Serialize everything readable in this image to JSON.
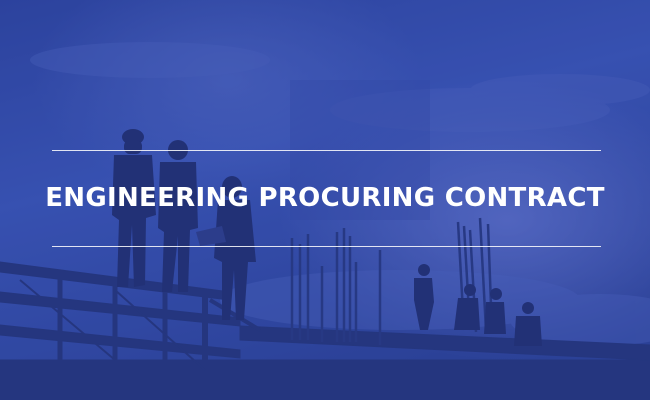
{
  "banner": {
    "title": "ENGINEERING PROCURING CONTRACT"
  },
  "colors": {
    "overlay": "#2e47a8",
    "sky_light": "#6a7fd0",
    "sky_dark": "#23378a",
    "silhouette": "#1f2a5e",
    "text": "#ffffff"
  },
  "scene": {
    "description_icons": [
      "construction-workers-silhouette",
      "steel-scaffold",
      "rebar-columns",
      "cloudy-sky"
    ]
  }
}
